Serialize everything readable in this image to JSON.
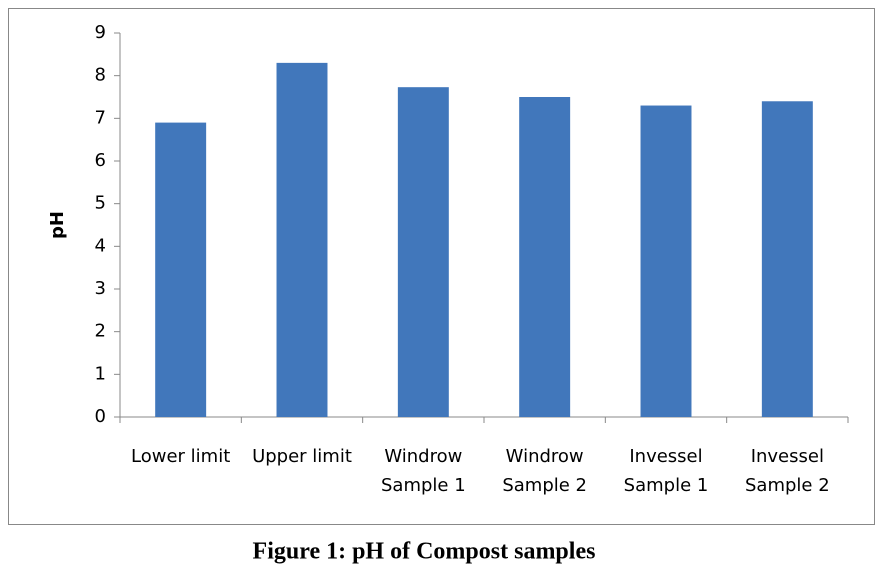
{
  "chart_data": {
    "type": "bar",
    "title": "Figure 1: pH of Compost samples",
    "y_label": "pH",
    "categories": [
      "Lower limit",
      "Upper limit",
      "Windrow Sample 1",
      "Windrow Sample 2",
      "Invessel Sample 1",
      "Invessel Sample 2"
    ],
    "values": [
      6.9,
      8.3,
      7.73,
      7.5,
      7.3,
      7.4
    ],
    "color": "#4177bb",
    "ylim": [
      0,
      9
    ],
    "yticks": [
      0,
      1,
      2,
      3,
      4,
      5,
      6,
      7,
      8,
      9
    ],
    "grid": false
  }
}
